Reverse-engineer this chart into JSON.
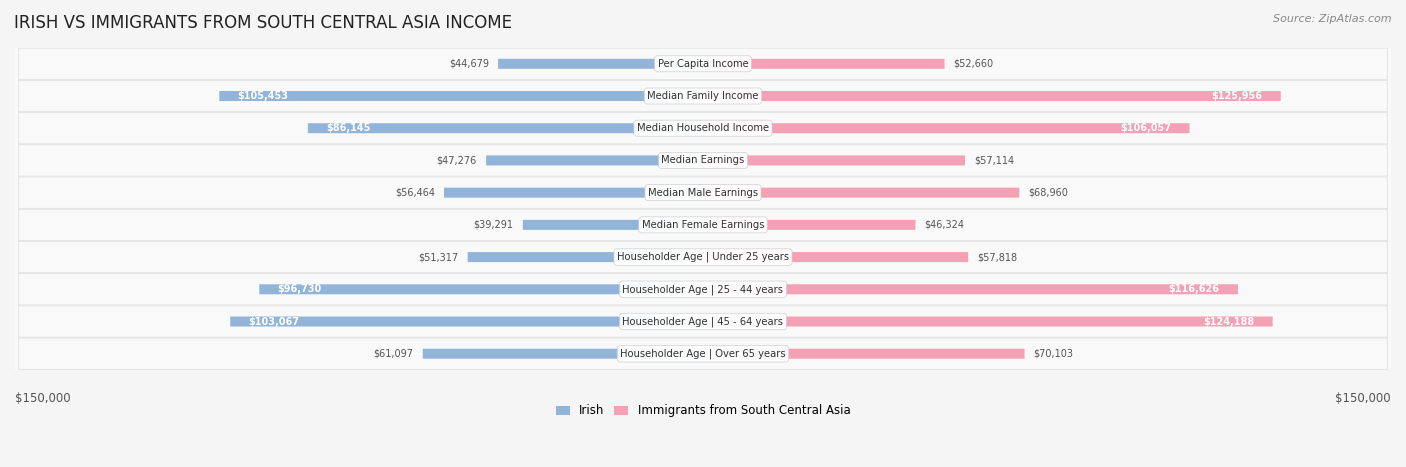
{
  "title": "IRISH VS IMMIGRANTS FROM SOUTH CENTRAL ASIA INCOME",
  "source": "Source: ZipAtlas.com",
  "categories": [
    "Per Capita Income",
    "Median Family Income",
    "Median Household Income",
    "Median Earnings",
    "Median Male Earnings",
    "Median Female Earnings",
    "Householder Age | Under 25 years",
    "Householder Age | 25 - 44 years",
    "Householder Age | 45 - 64 years",
    "Householder Age | Over 65 years"
  ],
  "irish_values": [
    44679,
    105453,
    86145,
    47276,
    56464,
    39291,
    51317,
    96730,
    103067,
    61097
  ],
  "immigrant_values": [
    52660,
    125956,
    106057,
    57114,
    68960,
    46324,
    57818,
    116626,
    124188,
    70103
  ],
  "irish_labels": [
    "$44,679",
    "$105,453",
    "$86,145",
    "$47,276",
    "$56,464",
    "$39,291",
    "$51,317",
    "$96,730",
    "$103,067",
    "$61,097"
  ],
  "immigrant_labels": [
    "$52,660",
    "$125,956",
    "$106,057",
    "$57,114",
    "$68,960",
    "$46,324",
    "$57,818",
    "$116,626",
    "$124,188",
    "$70,103"
  ],
  "max_value": 150000,
  "irish_color": "#92b4d9",
  "immigrant_color": "#f4a0b5",
  "irish_label_color_inside": "#ffffff",
  "irish_label_color_outside": "#555555",
  "immigrant_label_color_inside": "#ffffff",
  "immigrant_label_color_outside": "#555555",
  "background_color": "#f5f5f5",
  "row_bg_color": "#ffffff",
  "row_alt_bg_color": "#f0f0f0",
  "legend_irish": "Irish",
  "legend_immigrant": "Immigrants from South Central Asia",
  "irish_inside_threshold": 80000,
  "immigrant_inside_threshold": 80000
}
